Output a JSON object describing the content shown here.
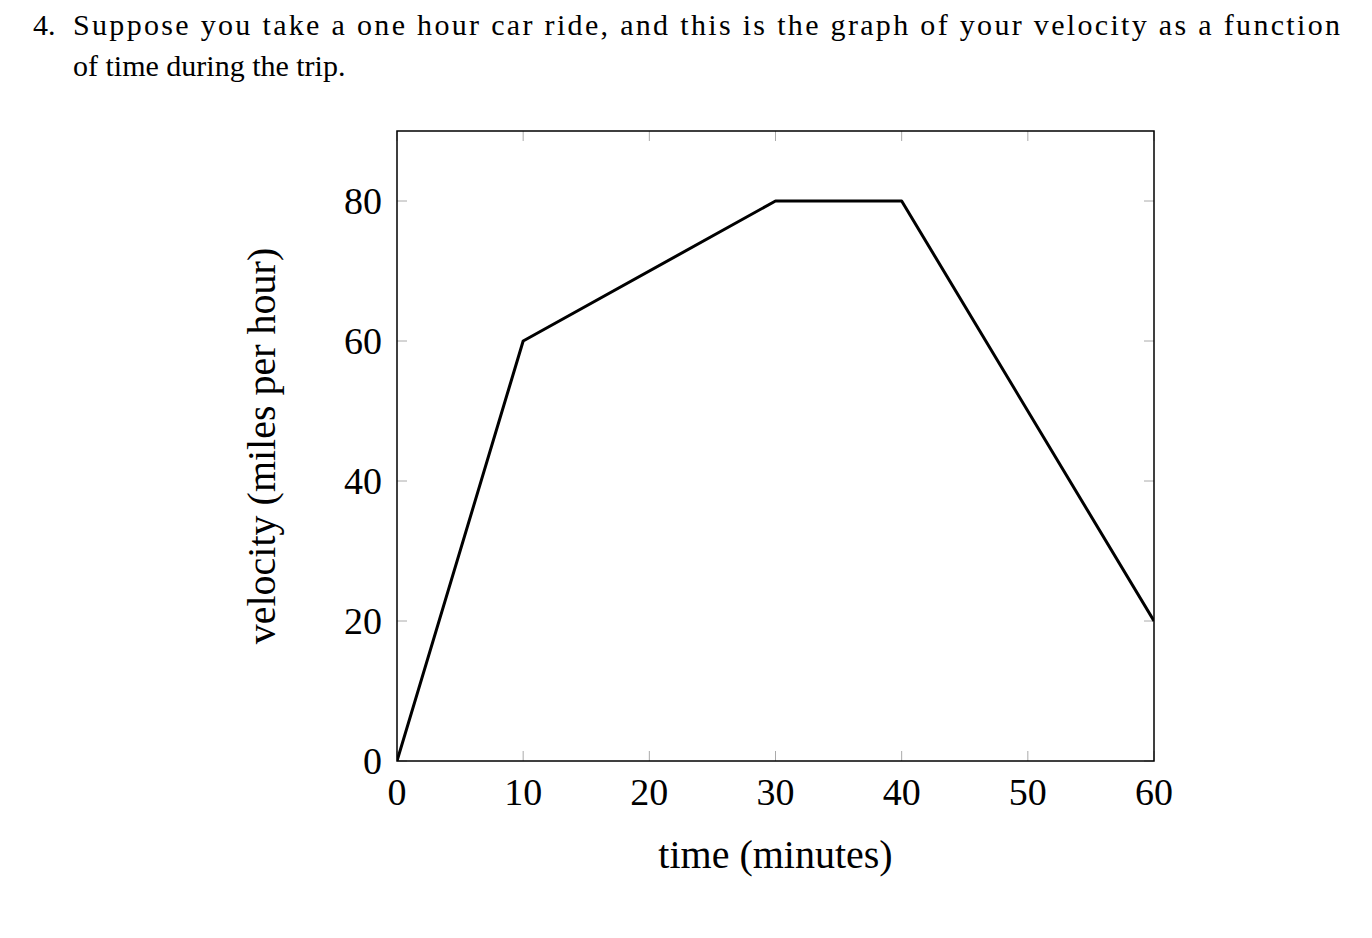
{
  "problem": {
    "number": "4.",
    "lines": [
      "Suppose you take a one hour car ride, and this is the graph of your velocity as a function",
      "of time during the trip."
    ]
  },
  "chart_data": {
    "type": "line",
    "xlabel": "time (minutes)",
    "ylabel": "velocity (miles per hour)",
    "x": [
      0,
      10,
      30,
      40,
      60
    ],
    "values": [
      0,
      60,
      80,
      80,
      20
    ],
    "color": "#000000",
    "xlim": [
      0,
      60
    ],
    "ylim": [
      0,
      90
    ],
    "xticks": [
      0,
      10,
      20,
      30,
      40,
      50,
      60
    ],
    "yticks": [
      0,
      20,
      40,
      60,
      80
    ],
    "grid": false
  }
}
